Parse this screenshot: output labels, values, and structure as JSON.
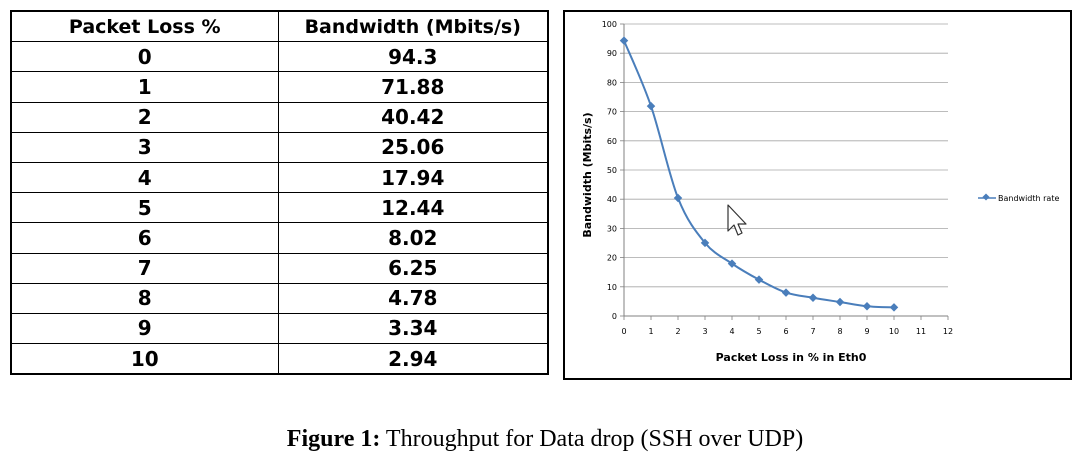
{
  "table": {
    "headers": [
      "Packet Loss %",
      "Bandwidth (Mbits/s)"
    ],
    "rows": [
      [
        "0",
        "94.3"
      ],
      [
        "1",
        "71.88"
      ],
      [
        "2",
        "40.42"
      ],
      [
        "3",
        "25.06"
      ],
      [
        "4",
        "17.94"
      ],
      [
        "5",
        "12.44"
      ],
      [
        "6",
        "8.02"
      ],
      [
        "7",
        "6.25"
      ],
      [
        "8",
        "4.78"
      ],
      [
        "9",
        "3.34"
      ],
      [
        "10",
        "2.94"
      ]
    ]
  },
  "chart_data": {
    "type": "line",
    "title": "",
    "xlabel": "Packet Loss in % in Eth0",
    "ylabel": "Bandwidth (Mbits/s)",
    "xlim": [
      0,
      12
    ],
    "ylim": [
      0,
      100
    ],
    "xticks": [
      0,
      1,
      2,
      3,
      4,
      5,
      6,
      7,
      8,
      9,
      10,
      11,
      12
    ],
    "yticks": [
      0,
      10,
      20,
      30,
      40,
      50,
      60,
      70,
      80,
      90,
      100
    ],
    "grid": true,
    "legend": "right",
    "series": [
      {
        "name": "Bandwidth rate",
        "color": "#4a7ebb",
        "x": [
          0,
          1,
          2,
          3,
          4,
          5,
          6,
          7,
          8,
          9,
          10
        ],
        "values": [
          94.3,
          71.88,
          40.42,
          25.06,
          17.94,
          12.44,
          8.02,
          6.25,
          4.78,
          3.34,
          2.94
        ]
      }
    ]
  },
  "caption": {
    "label": "Figure 1:",
    "text": "Throughput  for Data drop (SSH over UDP)"
  }
}
